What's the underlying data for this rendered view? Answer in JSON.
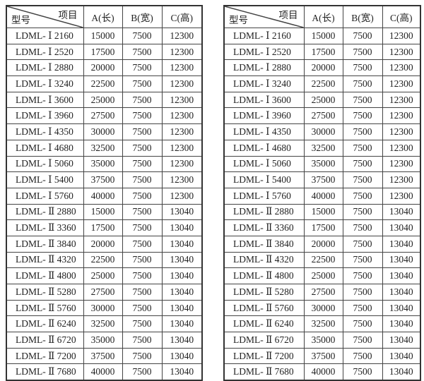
{
  "header": {
    "item": "项目",
    "model": "型号",
    "a": "A(长)",
    "b": "B(宽)",
    "c": "C(高)"
  },
  "rows": [
    [
      "LDML- Ⅰ 2160",
      "15000",
      "7500",
      "12300"
    ],
    [
      "LDML- Ⅰ 2520",
      "17500",
      "7500",
      "12300"
    ],
    [
      "LDML- Ⅰ 2880",
      "20000",
      "7500",
      "12300"
    ],
    [
      "LDML- Ⅰ 3240",
      "22500",
      "7500",
      "12300"
    ],
    [
      "LDML- Ⅰ 3600",
      "25000",
      "7500",
      "12300"
    ],
    [
      "LDML- Ⅰ 3960",
      "27500",
      "7500",
      "12300"
    ],
    [
      "LDML- Ⅰ 4350",
      "30000",
      "7500",
      "12300"
    ],
    [
      "LDML- Ⅰ 4680",
      "32500",
      "7500",
      "12300"
    ],
    [
      "LDML- Ⅰ 5060",
      "35000",
      "7500",
      "12300"
    ],
    [
      "LDML- Ⅰ 5400",
      "37500",
      "7500",
      "12300"
    ],
    [
      "LDML- Ⅰ 5760",
      "40000",
      "7500",
      "12300"
    ],
    [
      "LDML- Ⅱ 2880",
      "15000",
      "7500",
      "13040"
    ],
    [
      "LDML- Ⅱ 3360",
      "17500",
      "7500",
      "13040"
    ],
    [
      "LDML- Ⅱ 3840",
      "20000",
      "7500",
      "13040"
    ],
    [
      "LDML- Ⅱ 4320",
      "22500",
      "7500",
      "13040"
    ],
    [
      "LDML- Ⅱ 4800",
      "25000",
      "7500",
      "13040"
    ],
    [
      "LDML- Ⅱ 5280",
      "27500",
      "7500",
      "13040"
    ],
    [
      "LDML- Ⅱ 5760",
      "30000",
      "7500",
      "13040"
    ],
    [
      "LDML- Ⅱ 6240",
      "32500",
      "7500",
      "13040"
    ],
    [
      "LDML- Ⅱ 6720",
      "35000",
      "7500",
      "13040"
    ],
    [
      "LDML- Ⅱ 7200",
      "37500",
      "7500",
      "13040"
    ],
    [
      "LDML- Ⅱ 7680",
      "40000",
      "7500",
      "13040"
    ]
  ]
}
